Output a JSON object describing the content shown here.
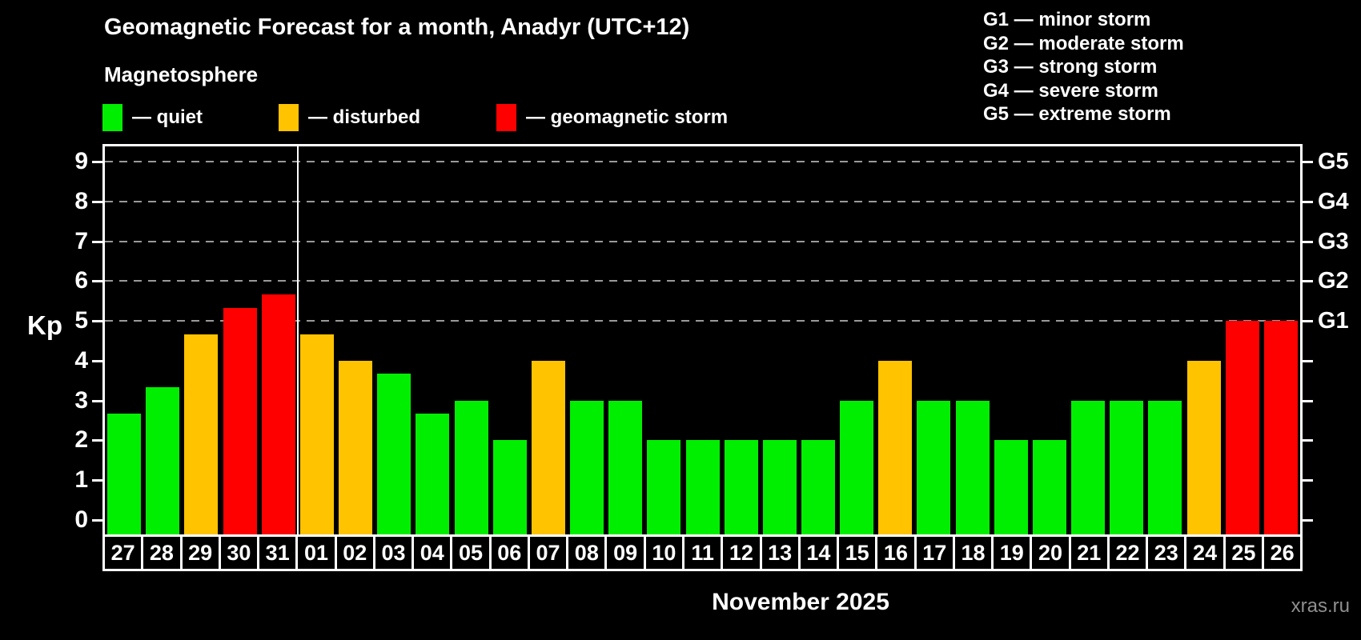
{
  "header": {
    "title": "Geomagnetic Forecast for a month, Anadyr (UTC+12)",
    "subtitle": "Magnetosphere"
  },
  "legend": {
    "items": [
      {
        "key": "quiet",
        "label": "— quiet",
        "color": "#00ef00"
      },
      {
        "key": "disturbed",
        "label": "— disturbed",
        "color": "#ffc300"
      },
      {
        "key": "storm",
        "label": "— geomagnetic storm",
        "color": "#ff0000"
      }
    ]
  },
  "g_legend": {
    "lines": [
      "G1 — minor storm",
      "G2 — moderate storm",
      "G3 — strong storm",
      "G4 — severe storm",
      "G5 — extreme storm"
    ]
  },
  "chart_data": {
    "type": "bar",
    "title": "Geomagnetic Forecast for a month, Anadyr (UTC+12)",
    "ylabel": "Kp",
    "xlabel": "November 2025",
    "ylim": [
      0,
      9
    ],
    "grid": "dashed horizontal at Kp 5-9 only",
    "legend_position": "top-left",
    "categories": [
      "27",
      "28",
      "29",
      "30",
      "31",
      "01",
      "02",
      "03",
      "04",
      "05",
      "06",
      "07",
      "08",
      "09",
      "10",
      "11",
      "12",
      "13",
      "14",
      "15",
      "16",
      "17",
      "18",
      "19",
      "20",
      "21",
      "22",
      "23",
      "24",
      "25",
      "26"
    ],
    "values": [
      2.67,
      3.33,
      4.67,
      5.33,
      5.67,
      4.67,
      4,
      3.67,
      2.67,
      3,
      2,
      4,
      3,
      3,
      2,
      2,
      2,
      2,
      2,
      3,
      4,
      3,
      3,
      2,
      2,
      3,
      3,
      3,
      4,
      5,
      5
    ],
    "statuses": [
      "quiet",
      "quiet",
      "disturbed",
      "storm",
      "storm",
      "disturbed",
      "disturbed",
      "quiet",
      "quiet",
      "quiet",
      "quiet",
      "disturbed",
      "quiet",
      "quiet",
      "quiet",
      "quiet",
      "quiet",
      "quiet",
      "quiet",
      "quiet",
      "disturbed",
      "quiet",
      "quiet",
      "quiet",
      "quiet",
      "quiet",
      "quiet",
      "quiet",
      "disturbed",
      "storm",
      "storm"
    ],
    "gridlines_kp": [
      5,
      6,
      7,
      8,
      9
    ],
    "right_axis": [
      {
        "kp": 5,
        "label": "G1"
      },
      {
        "kp": 6,
        "label": "G2"
      },
      {
        "kp": 7,
        "label": "G3"
      },
      {
        "kp": 8,
        "label": "G4"
      },
      {
        "kp": 9,
        "label": "G5"
      }
    ],
    "month_separator_after_index": 4
  },
  "footer": {
    "xlabel": "November 2025",
    "watermark": "xras.ru"
  }
}
